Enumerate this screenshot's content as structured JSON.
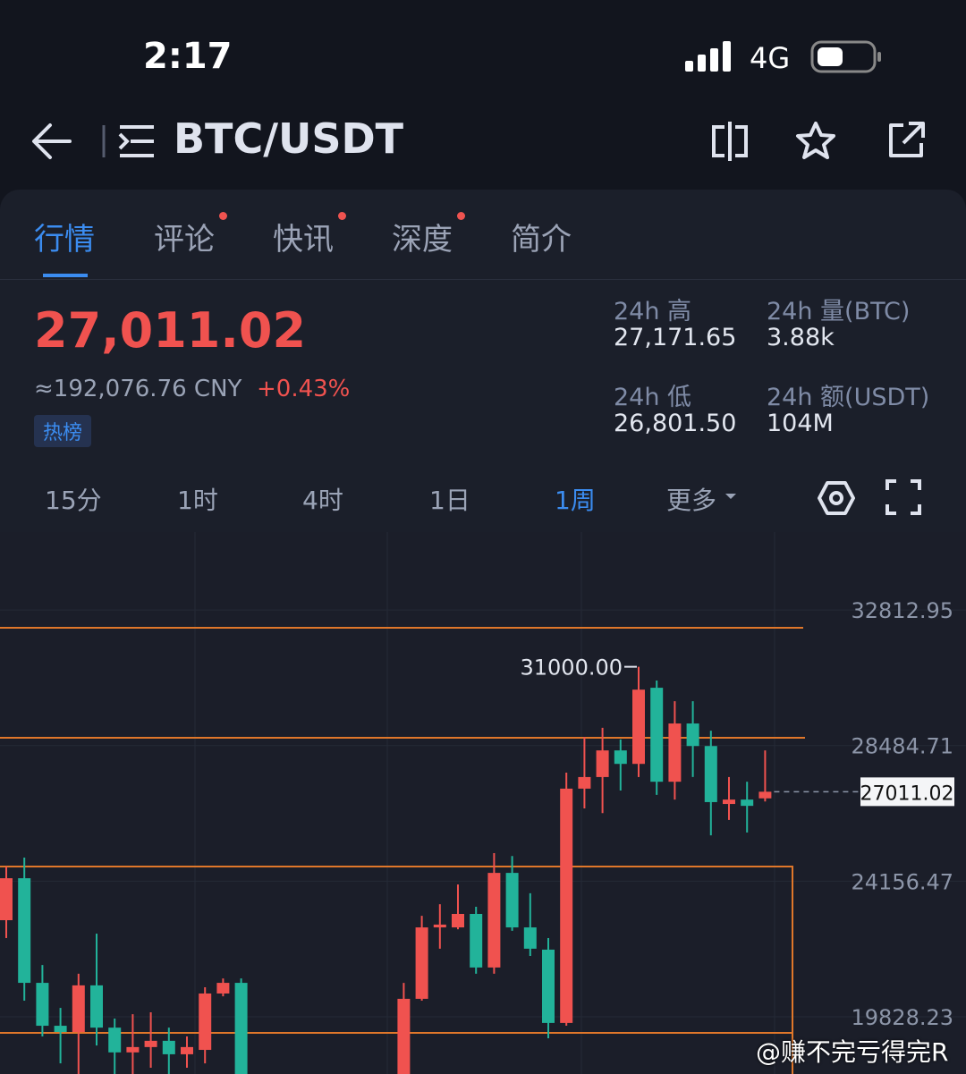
{
  "status_bar": {
    "time": "2:17",
    "network": "4G"
  },
  "header": {
    "title": "BTC/USDT"
  },
  "tabs": [
    "行情",
    "评论",
    "快讯",
    "深度",
    "简介"
  ],
  "price": {
    "last": "27,011.02",
    "cny": "≈192,076.76 CNY",
    "change": "+0.43%",
    "badge": "热榜"
  },
  "stats": [
    {
      "label": "24h 高",
      "value": "27,171.65"
    },
    {
      "label": "24h 量(BTC)",
      "value": "3.88k"
    },
    {
      "label": "24h 低",
      "value": "26,801.50"
    },
    {
      "label": "24h 额(USDT)",
      "value": "104M"
    }
  ],
  "timeframes": [
    "15分",
    "1时",
    "4时",
    "1日",
    "1周",
    "更多"
  ],
  "chart_data": {
    "type": "candlestick",
    "categories": [
      null,
      null,
      null,
      null,
      null,
      null,
      null,
      null,
      null,
      null,
      null,
      null,
      null,
      null,
      null,
      null,
      null,
      null,
      null,
      null,
      null,
      null,
      null,
      null,
      null,
      null,
      null,
      null,
      null,
      null,
      null,
      null,
      null,
      null,
      null,
      null,
      null,
      null,
      null,
      null,
      null,
      null,
      null
    ],
    "open": [
      22910,
      24250,
      20910,
      19540,
      19340,
      20830,
      19480,
      18690,
      18860,
      19060,
      18630,
      18770,
      20570,
      20910,
      null,
      null,
      null,
      null,
      null,
      null,
      null,
      null,
      16800,
      20400,
      22680,
      22680,
      23110,
      21400,
      24420,
      22680,
      21970,
      19630,
      27110,
      27480,
      28330,
      27900,
      30330,
      27330,
      29190,
      28470,
      26620,
      26760,
      26800
    ],
    "high": [
      24620,
      24910,
      21480,
      20110,
      21200,
      22480,
      19770,
      19910,
      19970,
      19480,
      19200,
      20770,
      21050,
      21050,
      null,
      null,
      null,
      null,
      null,
      null,
      null,
      null,
      20910,
      23050,
      23420,
      24050,
      23340,
      25050,
      24960,
      23770,
      22340,
      27620,
      28760,
      29050,
      28680,
      31000,
      30560,
      29900,
      29900,
      28960,
      27480,
      27330,
      28330
    ],
    "low": [
      22340,
      20340,
      19200,
      18340,
      17600,
      18910,
      17600,
      17700,
      18200,
      17800,
      18200,
      18340,
      20480,
      16500,
      null,
      null,
      null,
      null,
      null,
      null,
      null,
      null,
      16500,
      20340,
      22000,
      22620,
      21200,
      21200,
      22570,
      21770,
      19140,
      19540,
      26480,
      26330,
      27050,
      27480,
      26910,
      26760,
      27480,
      25620,
      26110,
      25710,
      26700
    ],
    "close": [
      24250,
      20910,
      19540,
      19340,
      20830,
      19480,
      18690,
      18860,
      19060,
      18630,
      18860,
      20570,
      20910,
      17000,
      null,
      null,
      null,
      null,
      null,
      null,
      null,
      null,
      20400,
      22680,
      22770,
      23110,
      21400,
      24420,
      22680,
      22000,
      19630,
      27110,
      27480,
      28330,
      27900,
      30270,
      27330,
      29190,
      28470,
      26680,
      26760,
      26560,
      27011.02
    ],
    "up_color": "#f0524f",
    "down_color": "#22b39a",
    "ylim": [
      18000,
      35300
    ],
    "yticks": [
      32812.95,
      28484.71,
      24156.47,
      19828.23
    ],
    "grid": true,
    "high_marker": {
      "value": 31000,
      "label": "31000.00"
    },
    "last_price": 27011.02
  },
  "watermark": "@赚不完亏得完R"
}
